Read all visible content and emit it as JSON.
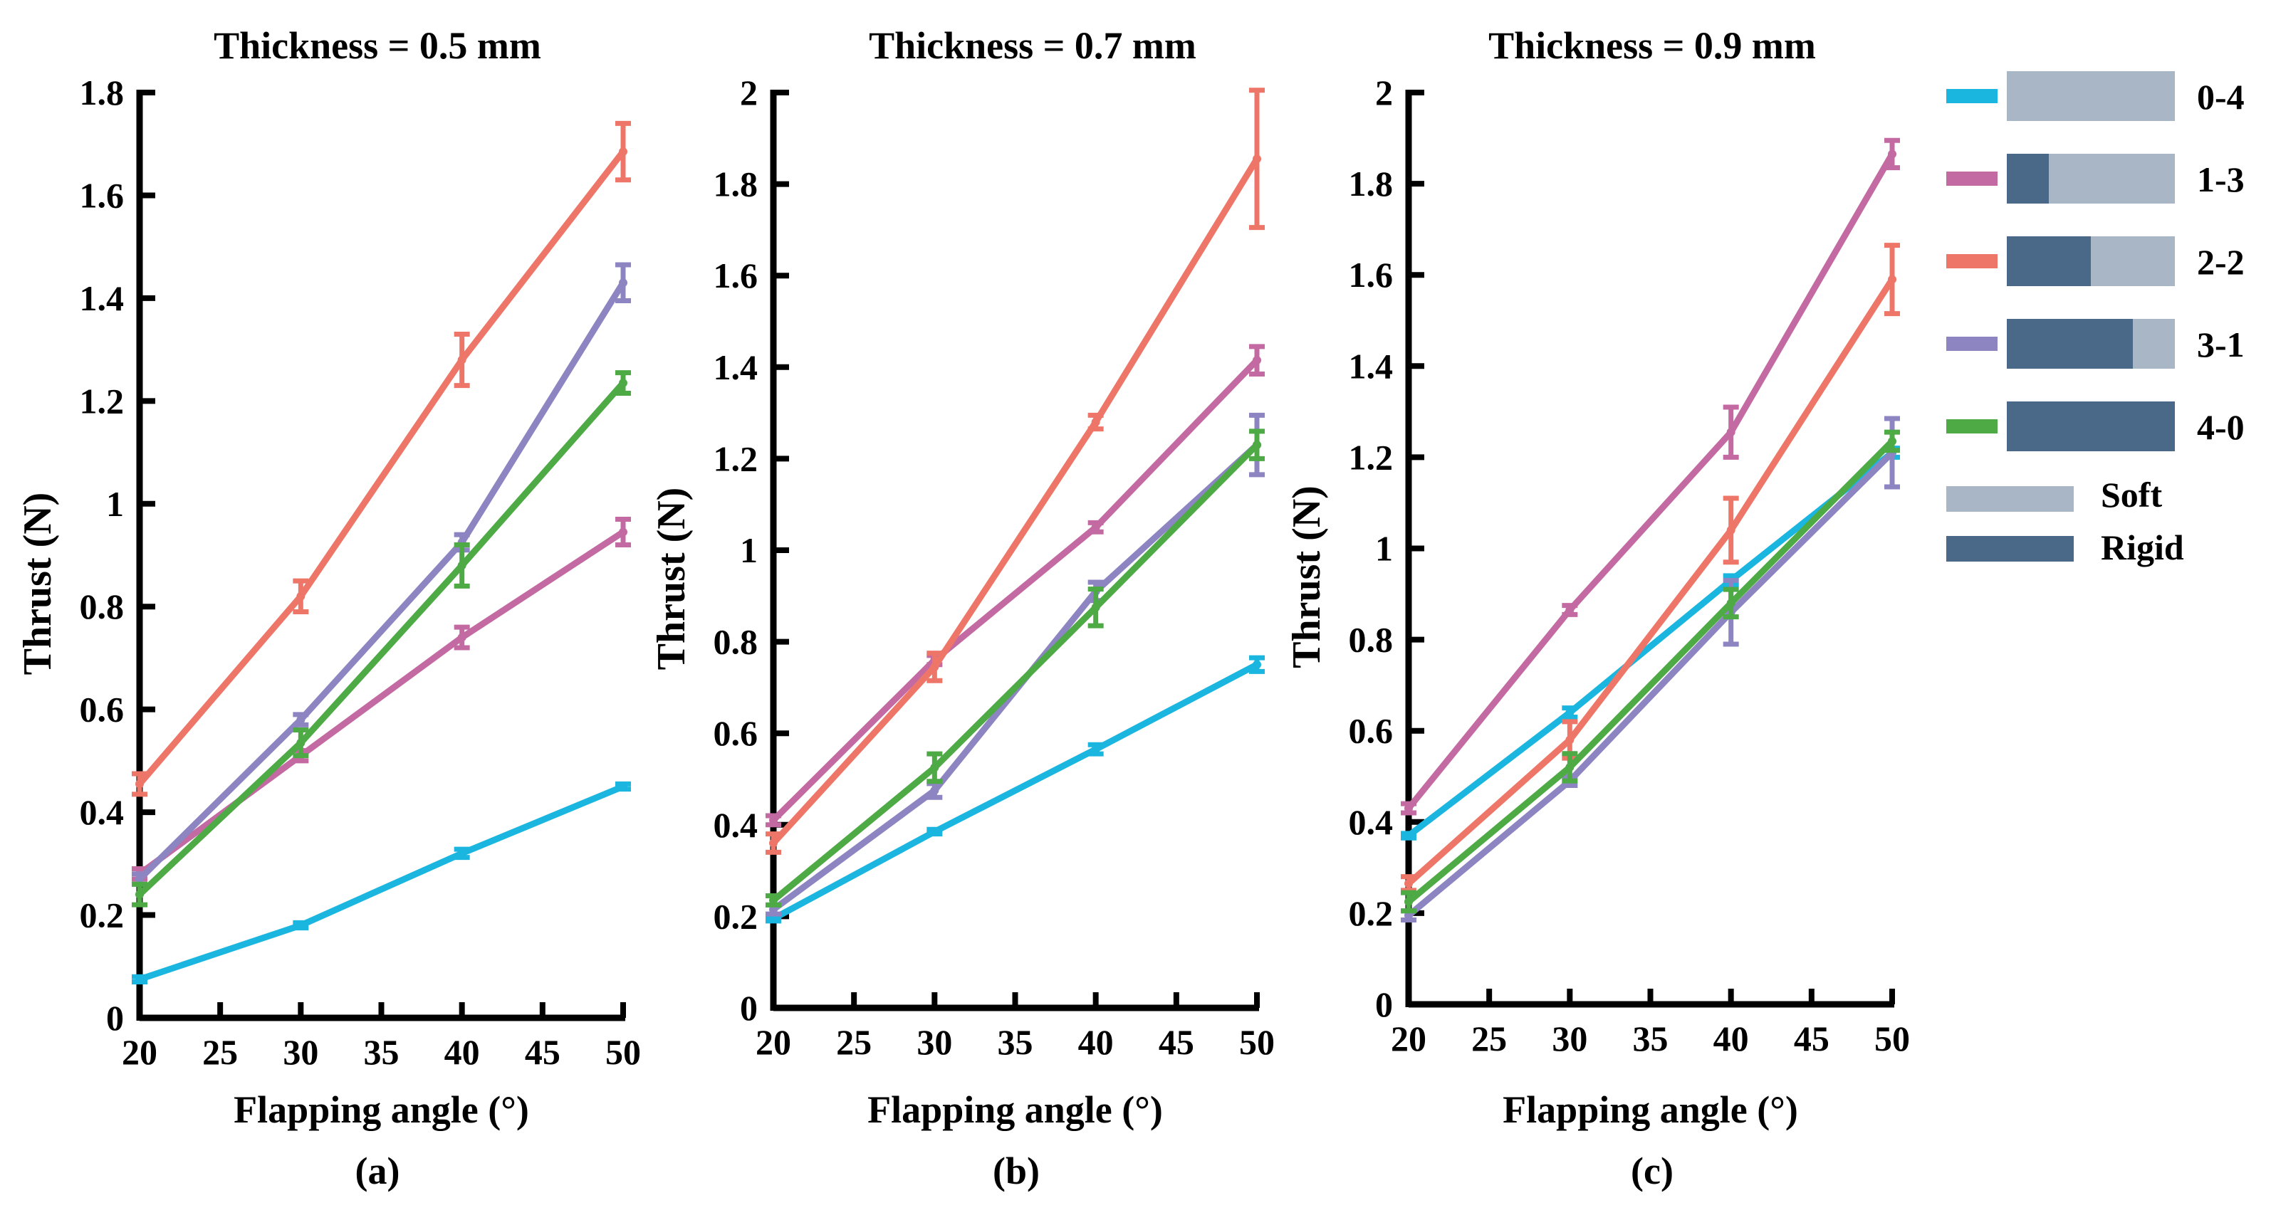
{
  "colors": {
    "0-4": "#1ab6df",
    "1-3": "#c46aa3",
    "2-2": "#ee7668",
    "3-1": "#8c85c2",
    "4-0": "#4daa45",
    "soft": "#a9b6c6",
    "rigid": "#4a6887"
  },
  "legend": {
    "entries": [
      {
        "key": "0-4",
        "label": "0-4",
        "rigid_fraction": 0.0
      },
      {
        "key": "1-3",
        "label": "1-3",
        "rigid_fraction": 0.25
      },
      {
        "key": "2-2",
        "label": "2-2",
        "rigid_fraction": 0.5
      },
      {
        "key": "3-1",
        "label": "3-1",
        "rigid_fraction": 0.75
      },
      {
        "key": "4-0",
        "label": "4-0",
        "rigid_fraction": 1.0
      }
    ],
    "soft_label": "Soft",
    "rigid_label": "Rigid"
  },
  "chart_data": [
    {
      "type": "line",
      "title": "Thickness = 0.5 mm",
      "panel_label": "(a)",
      "xlabel": "Flapping angle (°)",
      "ylabel": "Thrust (N)",
      "x": [
        20,
        30,
        40,
        50
      ],
      "xticks": [
        "20",
        "25",
        "30",
        "35",
        "40",
        "45",
        "50"
      ],
      "yticks": [
        "0",
        "0.2",
        "0.4",
        "0.6",
        "0.8",
        "1",
        "1.2",
        "1.4",
        "1.6",
        "1.8"
      ],
      "xlim": [
        20,
        50
      ],
      "ylim": [
        0,
        1.8
      ],
      "series": [
        {
          "name": "0-4",
          "values": [
            0.075,
            0.18,
            0.32,
            0.45
          ],
          "errors": [
            0.005,
            0.005,
            0.008,
            0.005
          ]
        },
        {
          "name": "1-3",
          "values": [
            0.28,
            0.51,
            0.74,
            0.945
          ],
          "errors": [
            0.01,
            0.01,
            0.02,
            0.025
          ]
        },
        {
          "name": "2-2",
          "values": [
            0.455,
            0.82,
            1.28,
            1.685
          ],
          "errors": [
            0.02,
            0.03,
            0.05,
            0.055
          ]
        },
        {
          "name": "3-1",
          "values": [
            0.27,
            0.58,
            0.925,
            1.43
          ],
          "errors": [
            0.01,
            0.01,
            0.015,
            0.035
          ]
        },
        {
          "name": "4-0",
          "values": [
            0.24,
            0.535,
            0.88,
            1.235
          ],
          "errors": [
            0.02,
            0.025,
            0.04,
            0.02
          ]
        }
      ]
    },
    {
      "type": "line",
      "title": "Thickness = 0.7 mm",
      "panel_label": "(b)",
      "xlabel": "Flapping angle (°)",
      "ylabel": "Thrust (N)",
      "x": [
        20,
        30,
        40,
        50
      ],
      "xticks": [
        "20",
        "25",
        "30",
        "35",
        "40",
        "45",
        "50"
      ],
      "yticks": [
        "0",
        "0.2",
        "0.4",
        "0.6",
        "0.8",
        "1",
        "1.2",
        "1.4",
        "1.6",
        "1.8",
        "2"
      ],
      "xlim": [
        20,
        50
      ],
      "ylim": [
        0,
        2
      ],
      "series": [
        {
          "name": "0-4",
          "values": [
            0.195,
            0.385,
            0.565,
            0.75
          ],
          "errors": [
            0.005,
            0.005,
            0.01,
            0.015
          ]
        },
        {
          "name": "1-3",
          "values": [
            0.41,
            0.76,
            1.05,
            1.415
          ],
          "errors": [
            0.01,
            0.01,
            0.01,
            0.03
          ]
        },
        {
          "name": "2-2",
          "values": [
            0.36,
            0.745,
            1.28,
            1.855
          ],
          "errors": [
            0.02,
            0.03,
            0.015,
            0.15
          ]
        },
        {
          "name": "3-1",
          "values": [
            0.215,
            0.475,
            0.91,
            1.23
          ],
          "errors": [
            0.01,
            0.015,
            0.02,
            0.065
          ]
        },
        {
          "name": "4-0",
          "values": [
            0.235,
            0.525,
            0.875,
            1.23
          ],
          "errors": [
            0.01,
            0.03,
            0.04,
            0.03
          ]
        }
      ]
    },
    {
      "type": "line",
      "title": "Thickness = 0.9 mm",
      "panel_label": "(c)",
      "xlabel": "Flapping angle (°)",
      "ylabel": "Thrust (N)",
      "x": [
        20,
        30,
        40,
        50
      ],
      "xticks": [
        "20",
        "25",
        "30",
        "35",
        "40",
        "45",
        "50"
      ],
      "yticks": [
        "0",
        "0.2",
        "0.4",
        "0.6",
        "0.8",
        "1",
        "1.2",
        "1.4",
        "1.6",
        "1.8",
        "2"
      ],
      "xlim": [
        20,
        50
      ],
      "ylim": [
        0,
        2
      ],
      "series": [
        {
          "name": "0-4",
          "values": [
            0.37,
            0.64,
            0.93,
            1.21
          ],
          "errors": [
            0.005,
            0.01,
            0.01,
            0.01
          ]
        },
        {
          "name": "1-3",
          "values": [
            0.43,
            0.865,
            1.255,
            1.865
          ],
          "errors": [
            0.01,
            0.01,
            0.055,
            0.03
          ]
        },
        {
          "name": "2-2",
          "values": [
            0.265,
            0.58,
            1.04,
            1.59
          ],
          "errors": [
            0.015,
            0.04,
            0.07,
            0.075
          ]
        },
        {
          "name": "3-1",
          "values": [
            0.195,
            0.49,
            0.86,
            1.21
          ],
          "errors": [
            0.01,
            0.01,
            0.07,
            0.075
          ]
        },
        {
          "name": "4-0",
          "values": [
            0.225,
            0.52,
            0.88,
            1.235
          ],
          "errors": [
            0.02,
            0.03,
            0.03,
            0.02
          ]
        }
      ]
    }
  ]
}
